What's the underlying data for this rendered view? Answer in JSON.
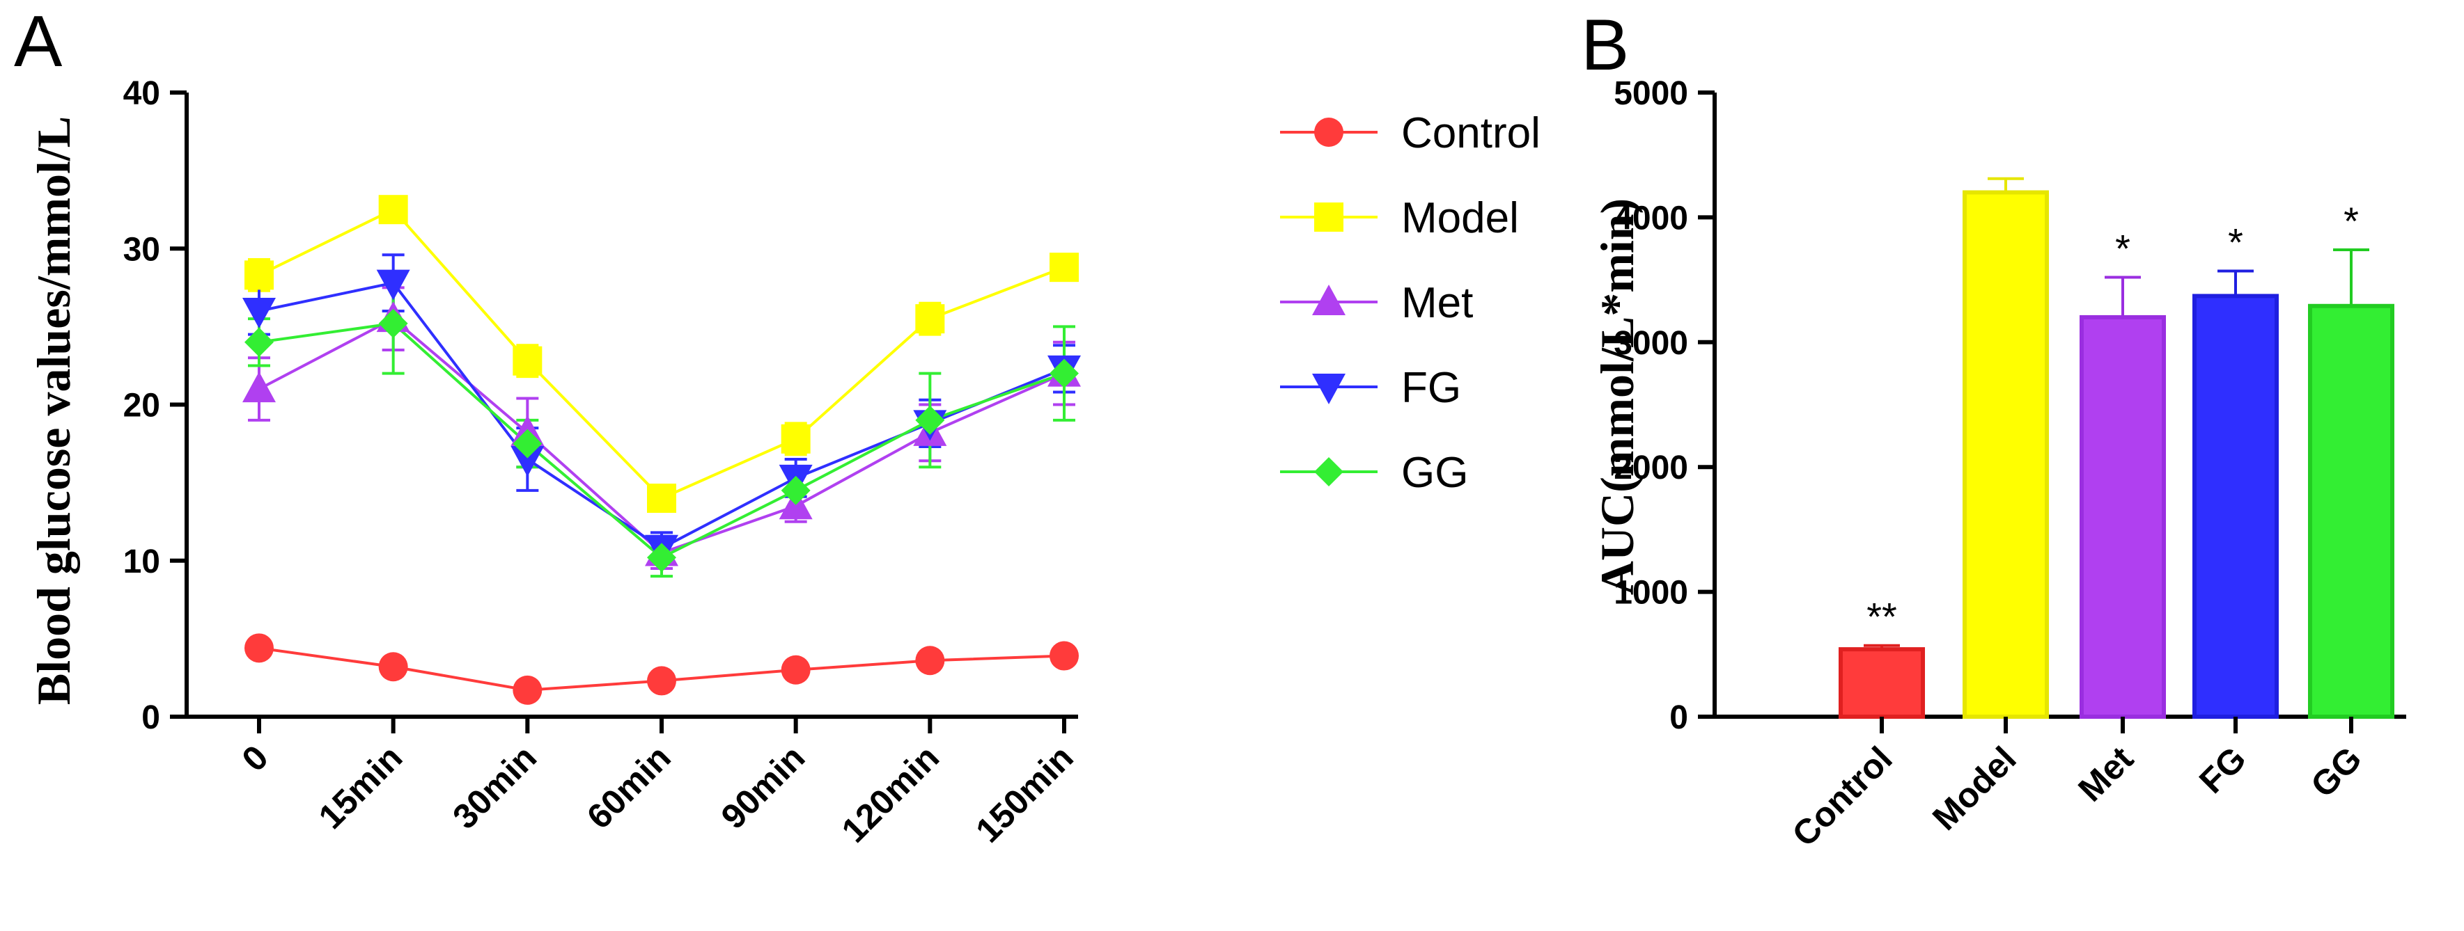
{
  "chart_data": [
    {
      "panel": "A",
      "type": "line",
      "title": "",
      "xlabel": "",
      "ylabel": "Blood glucose values/mmol/L",
      "ylim": [
        0,
        40
      ],
      "yticks": [
        0,
        10,
        20,
        30,
        40
      ],
      "categories": [
        "0",
        "15min",
        "30min",
        "60min",
        "90min",
        "120min",
        "150min"
      ],
      "legend_position": "right",
      "series": [
        {
          "name": "Control",
          "color": "#ff3b3b",
          "marker": "circle",
          "values": [
            4.4,
            3.2,
            1.7,
            2.3,
            3.0,
            3.6,
            3.9
          ],
          "errors": [
            0.3,
            0.3,
            0.2,
            0.2,
            0.2,
            0.3,
            0.3
          ]
        },
        {
          "name": "Model",
          "color": "#ffff00",
          "marker": "square",
          "values": [
            28.3,
            32.5,
            22.8,
            14.0,
            17.8,
            25.5,
            28.8
          ],
          "errors": [
            1.0,
            0.6,
            1.0,
            0.6,
            1.0,
            1.0,
            0.8
          ]
        },
        {
          "name": "Met",
          "color": "#b040f0",
          "marker": "triangle-up",
          "values": [
            21.0,
            25.5,
            18.2,
            10.5,
            13.5,
            18.2,
            22.0
          ],
          "errors": [
            2.0,
            2.0,
            2.2,
            1.0,
            1.0,
            1.8,
            2.0
          ]
        },
        {
          "name": "FG",
          "color": "#2f2fff",
          "marker": "triangle-down",
          "values": [
            26.0,
            27.8,
            16.5,
            10.8,
            15.3,
            18.8,
            22.3
          ],
          "errors": [
            1.5,
            1.8,
            2.0,
            1.0,
            1.2,
            1.5,
            1.5
          ]
        },
        {
          "name": "GG",
          "color": "#33ee33",
          "marker": "diamond",
          "values": [
            24.0,
            25.2,
            17.5,
            10.2,
            14.5,
            19.0,
            22.0
          ],
          "errors": [
            1.5,
            3.2,
            1.5,
            1.2,
            1.5,
            3.0,
            3.0
          ]
        }
      ]
    },
    {
      "panel": "B",
      "type": "bar",
      "title": "",
      "xlabel": "",
      "ylabel": "AUC(mmol/L*min)",
      "ylim": [
        0,
        5000
      ],
      "yticks": [
        0,
        1000,
        2000,
        3000,
        4000,
        5000
      ],
      "categories": [
        "Control",
        "Model",
        "Met",
        "FG",
        "GG"
      ],
      "values": [
        540,
        4200,
        3200,
        3370,
        3290
      ],
      "errors": [
        30,
        110,
        320,
        200,
        450
      ],
      "significance": [
        "**",
        "",
        "*",
        "*",
        "*"
      ],
      "colors": [
        "#ff3b3b",
        "#ffff00",
        "#b040f0",
        "#2f2fff",
        "#33ee33"
      ],
      "edge_colors": [
        "#e02020",
        "#e6e600",
        "#9a2ee0",
        "#1f1fe0",
        "#22cc22"
      ]
    }
  ]
}
